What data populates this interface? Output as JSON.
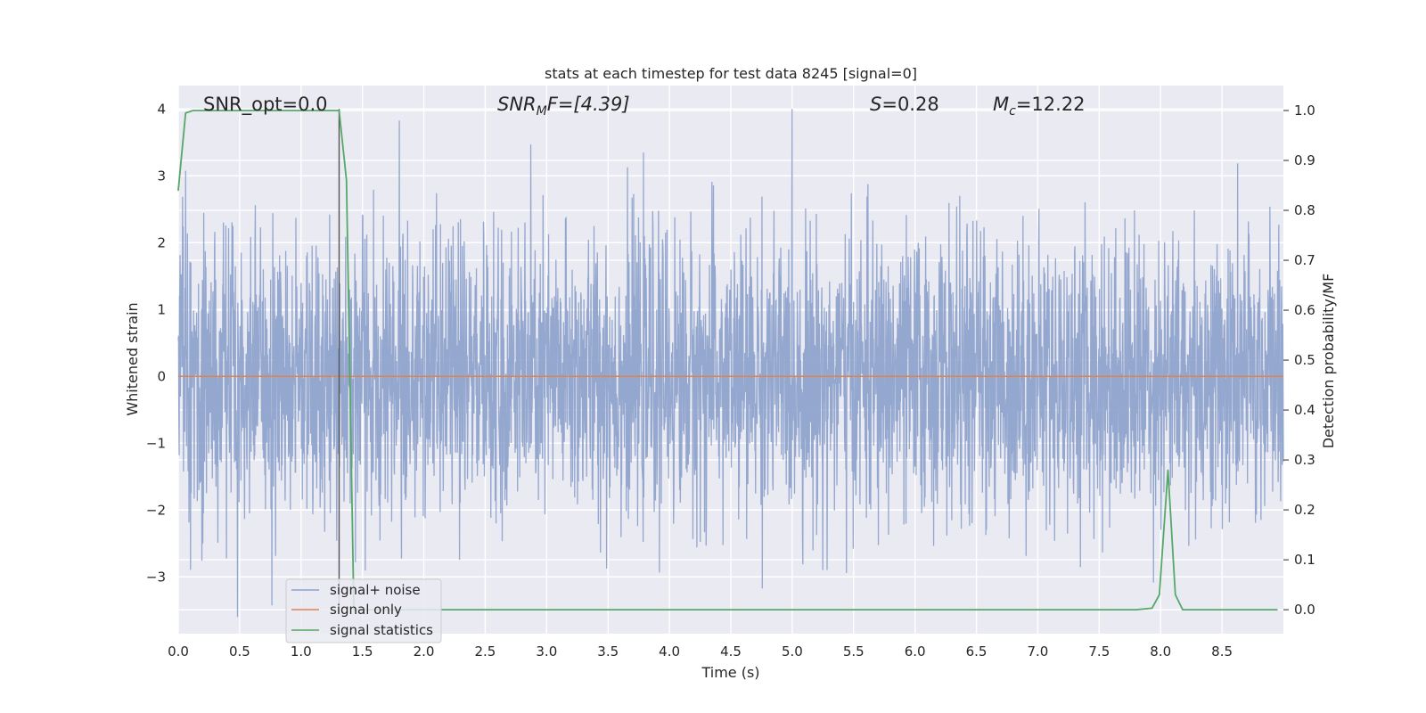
{
  "chart_data": {
    "type": "line",
    "title": "stats at each timestep for test data 8245 [signal=0]",
    "xlabel": "Time (s)",
    "ylabel": "Whitened strain",
    "y2label": "Detection probability/MF",
    "xlim": [
      0.0,
      9.0
    ],
    "ylim": [
      -3.85,
      4.35
    ],
    "y2lim": [
      -0.048,
      1.05
    ],
    "xticks": [
      "0.0",
      "0.5",
      "1.0",
      "1.5",
      "2.0",
      "2.5",
      "3.0",
      "3.5",
      "4.0",
      "4.5",
      "5.0",
      "5.5",
      "6.0",
      "6.5",
      "7.0",
      "7.5",
      "8.0",
      "8.5"
    ],
    "yticks": [
      "−3",
      "−2",
      "−1",
      "0",
      "1",
      "2",
      "3",
      "4"
    ],
    "y2ticks": [
      "0.0",
      "0.1",
      "0.2",
      "0.3",
      "0.4",
      "0.5",
      "0.6",
      "0.7",
      "0.8",
      "0.9",
      "1.0"
    ],
    "grid": true,
    "legend_placement": "lower-left",
    "annotations": {
      "snr_opt": "SNR_opt=0.0",
      "snr_mf_main": "SNR",
      "snr_mf_sub": "M",
      "snr_mf_rest": "F=[4.39]",
      "s_main": "S",
      "s_rest": "=0.28",
      "mc_main": "M",
      "mc_sub": "c",
      "mc_rest": "=12.22"
    },
    "series": [
      {
        "name": "signal+ noise",
        "color": "#8ba0cb",
        "axis": "left",
        "noise_envelope": {
          "x_range": [
            0.0,
            9.0
          ],
          "typical_band": [
            -1.3,
            1.5
          ],
          "max_value": 4.0,
          "min_value": -3.6
        }
      },
      {
        "name": "signal only",
        "color": "#dd8452",
        "axis": "left",
        "x": [
          0.0,
          9.0
        ],
        "y": [
          0.0,
          0.0
        ]
      },
      {
        "name": "signal statistics",
        "color": "#55a868",
        "axis": "right",
        "x": [
          0.0,
          0.06,
          0.12,
          0.25,
          0.5,
          0.75,
          1.0,
          1.25,
          1.31,
          1.37,
          1.43,
          1.5,
          2.0,
          3.0,
          4.0,
          5.0,
          6.0,
          7.0,
          7.8,
          7.93,
          7.99,
          8.06,
          8.12,
          8.18,
          8.25,
          8.5,
          8.95
        ],
        "y": [
          0.84,
          0.995,
          1.0,
          1.0,
          1.0,
          1.0,
          1.0,
          1.0,
          1.0,
          0.86,
          0.0,
          0.0,
          0.0,
          0.0,
          0.0,
          0.0,
          0.0,
          0.0,
          0.0,
          0.003,
          0.03,
          0.28,
          0.03,
          0.0,
          0.0,
          0.0,
          0.0
        ]
      }
    ],
    "marker_line": {
      "x": 1.31,
      "color": "#555555"
    }
  }
}
